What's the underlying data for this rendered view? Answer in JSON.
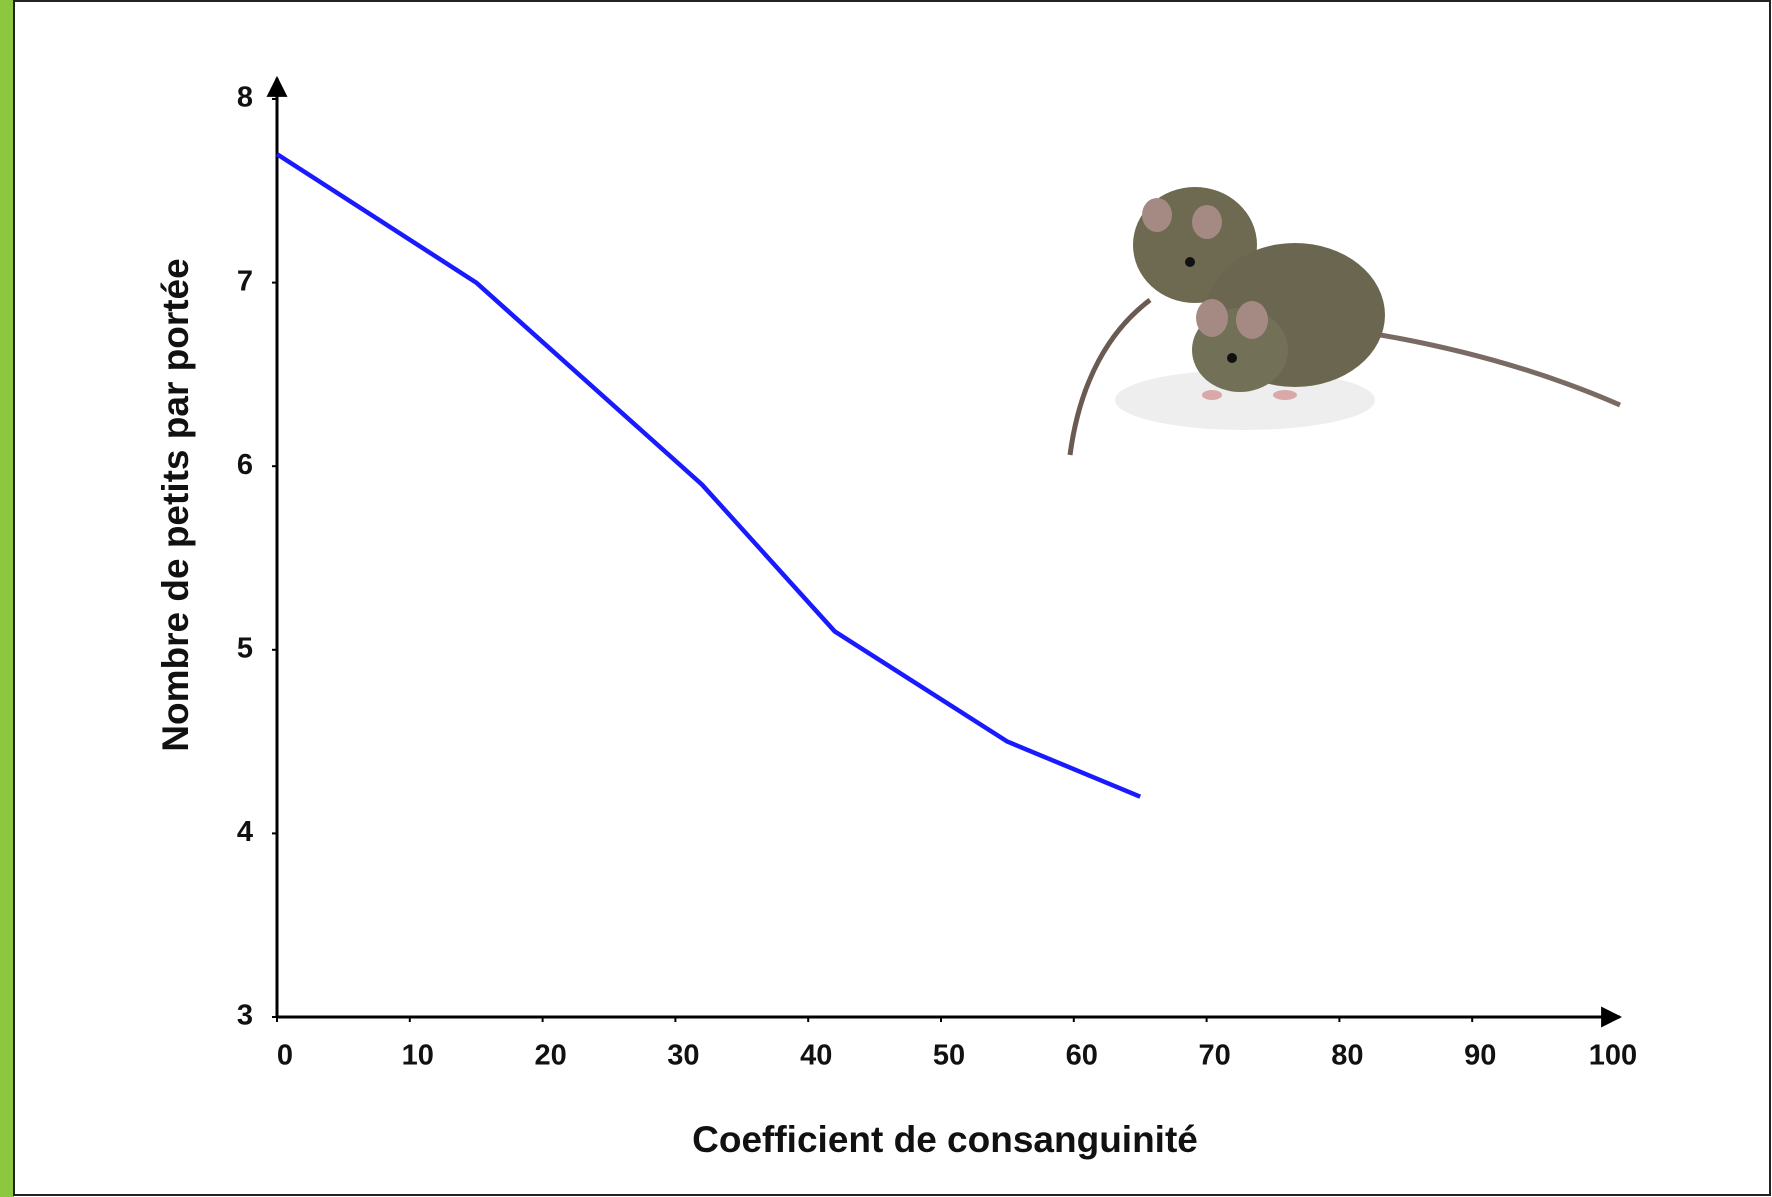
{
  "chart_data": {
    "type": "line",
    "x": [
      0,
      15,
      32,
      42,
      55,
      65
    ],
    "values": [
      7.7,
      7.0,
      5.9,
      5.1,
      4.5,
      4.2
    ],
    "color": "#1a1aff",
    "xlabel": "Coefficient de consanguinité",
    "ylabel": "Nombre de petits par portée",
    "xlim": [
      0,
      100
    ],
    "ylim": [
      3,
      8
    ],
    "xticks": [
      0,
      10,
      20,
      30,
      40,
      50,
      60,
      70,
      80,
      90,
      100
    ],
    "yticks": [
      3,
      4,
      5,
      6,
      7,
      8
    ],
    "grid": false
  }
}
